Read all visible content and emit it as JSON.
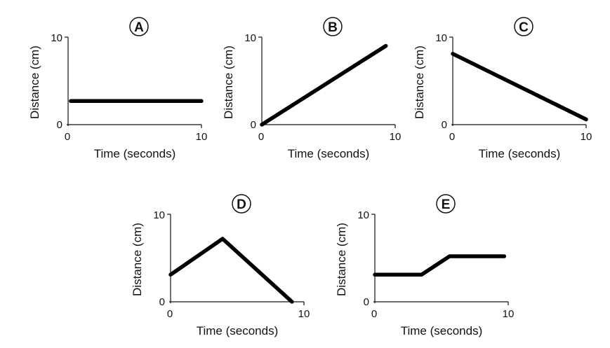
{
  "chart_data": [
    {
      "type": "line",
      "title": "A",
      "xlabel": "Time (seconds)",
      "ylabel": "Distance (cm)",
      "xlim": [
        0,
        10
      ],
      "ylim": [
        0,
        10
      ],
      "x_ticks": [
        "0",
        "10"
      ],
      "y_ticks": [
        "0",
        "10"
      ],
      "grid": false,
      "series": [
        {
          "x": [
            0.2,
            10
          ],
          "y": [
            2.7,
            2.7
          ]
        }
      ]
    },
    {
      "type": "line",
      "title": "B",
      "xlabel": "Time (seconds)",
      "ylabel": "Distance (cm)",
      "xlim": [
        0,
        10
      ],
      "ylim": [
        0,
        10
      ],
      "x_ticks": [
        "0",
        "10"
      ],
      "y_ticks": [
        "0",
        "10"
      ],
      "grid": false,
      "series": [
        {
          "x": [
            0,
            9.3
          ],
          "y": [
            0,
            9.0
          ]
        }
      ]
    },
    {
      "type": "line",
      "title": "C",
      "xlabel": "Time (seconds)",
      "ylabel": "Distance (cm)",
      "xlim": [
        0,
        10
      ],
      "ylim": [
        0,
        10
      ],
      "x_ticks": [
        "0",
        "10"
      ],
      "y_ticks": [
        "0",
        "10"
      ],
      "grid": false,
      "series": [
        {
          "x": [
            0,
            10
          ],
          "y": [
            8.1,
            0.6
          ]
        }
      ]
    },
    {
      "type": "line",
      "title": "D",
      "xlabel": "Time (seconds)",
      "ylabel": "Distance (cm)",
      "xlim": [
        0,
        10
      ],
      "ylim": [
        0,
        10
      ],
      "x_ticks": [
        "0",
        "10"
      ],
      "y_ticks": [
        "0",
        "10"
      ],
      "grid": false,
      "series": [
        {
          "x": [
            0,
            3.9,
            9.1
          ],
          "y": [
            3.1,
            7.2,
            0
          ]
        }
      ]
    },
    {
      "type": "line",
      "title": "E",
      "xlabel": "Time (seconds)",
      "ylabel": "Distance (cm)",
      "xlim": [
        0,
        10
      ],
      "ylim": [
        0,
        10
      ],
      "x_ticks": [
        "0",
        "10"
      ],
      "y_ticks": [
        "0",
        "10"
      ],
      "grid": false,
      "series": [
        {
          "x": [
            0,
            3.5,
            5.6,
            9.7
          ],
          "y": [
            3.1,
            3.1,
            5.2,
            5.2
          ]
        }
      ]
    }
  ]
}
